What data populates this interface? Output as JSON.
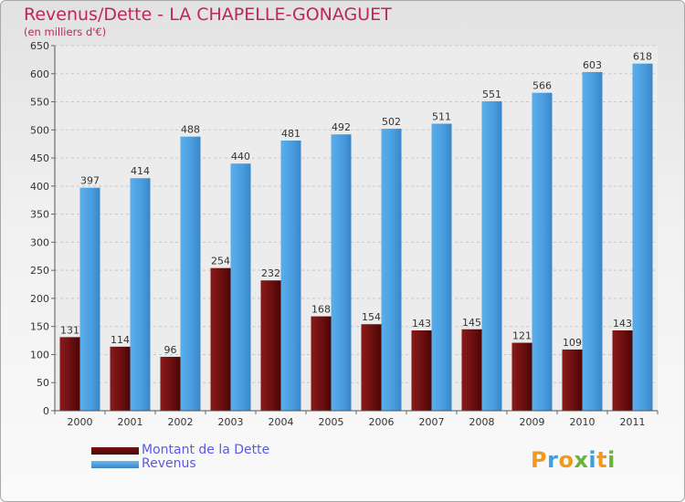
{
  "title": "Revenus/Dette - LA CHAPELLE-GONAGUET",
  "subtitle": "(en milliers d'€)",
  "colors": {
    "title": "#c0245f",
    "dette": "#6b0f0f",
    "revenus": "#4a9ee0",
    "legend_text": "#5b59e3"
  },
  "legend": {
    "dette_label": "Montant de la Dette",
    "revenus_label": "Revenus"
  },
  "logo": {
    "text": "Proxiti"
  },
  "chart_data": {
    "type": "bar",
    "title": "Revenus/Dette - LA CHAPELLE-GONAGUET",
    "subtitle": "(en milliers d'€)",
    "categories": [
      "2000",
      "2001",
      "2002",
      "2003",
      "2004",
      "2005",
      "2006",
      "2007",
      "2008",
      "2009",
      "2010",
      "2011"
    ],
    "series": [
      {
        "name": "Montant de la Dette",
        "values": [
          131,
          114,
          96,
          254,
          232,
          168,
          154,
          143,
          145,
          121,
          109,
          143
        ]
      },
      {
        "name": "Revenus",
        "values": [
          397,
          414,
          488,
          440,
          481,
          492,
          502,
          511,
          551,
          566,
          603,
          618
        ]
      }
    ],
    "ylim": [
      0,
      650
    ],
    "yticks": [
      0,
      50,
      100,
      150,
      200,
      250,
      300,
      350,
      400,
      450,
      500,
      550,
      600,
      650
    ],
    "grid": true,
    "legend_position": "bottom-left"
  }
}
